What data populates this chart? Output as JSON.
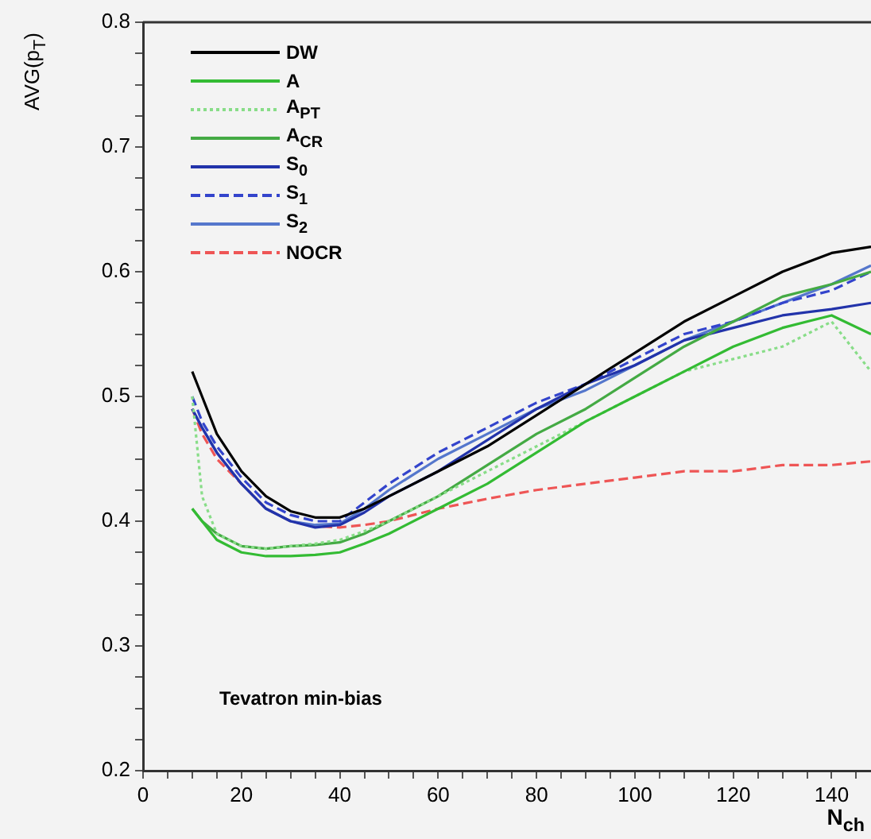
{
  "chart_data": {
    "type": "line",
    "ylabel": "AVG(p$_{T}$)",
    "xlabel": "N$_{ch}$",
    "legend": "top left",
    "marker": "none",
    "grid": false,
    "xlim": [
      0,
      148
    ],
    "ylim": [
      0.2,
      0.8
    ],
    "xticks": [
      0,
      {
        "value": 5,
        "label": null
      },
      {
        "value": 10,
        "label": null
      },
      {
        "value": 15,
        "label": null
      },
      20,
      {
        "value": 25,
        "label": null
      },
      {
        "value": 30,
        "label": null
      },
      {
        "value": 35,
        "label": null
      },
      40,
      {
        "value": 45,
        "label": null
      },
      {
        "value": 50,
        "label": null
      },
      {
        "value": 55,
        "label": null
      },
      60,
      {
        "value": 65,
        "label": null
      },
      {
        "value": 70,
        "label": null
      },
      {
        "value": 75,
        "label": null
      },
      80,
      {
        "value": 85,
        "label": null
      },
      {
        "value": 90,
        "label": null
      },
      {
        "value": 95,
        "label": null
      },
      100,
      {
        "value": 105,
        "label": null
      },
      {
        "value": 110,
        "label": null
      },
      {
        "value": 115,
        "label": null
      },
      120,
      {
        "value": 125,
        "label": null
      },
      {
        "value": 130,
        "label": null
      },
      {
        "value": 135,
        "label": null
      },
      140,
      {
        "value": 145,
        "label": null
      }
    ],
    "yticks": [
      0.2,
      {
        "value": 0.225,
        "label": null
      },
      {
        "value": 0.25,
        "label": null
      },
      {
        "value": 0.275,
        "label": null
      },
      0.3,
      {
        "value": 0.325,
        "label": null
      },
      {
        "value": 0.35,
        "label": null
      },
      {
        "value": 0.375,
        "label": null
      },
      0.4,
      {
        "value": 0.425,
        "label": null
      },
      {
        "value": 0.45,
        "label": null
      },
      {
        "value": 0.475,
        "label": null
      },
      0.5,
      {
        "value": 0.525,
        "label": null
      },
      {
        "value": 0.55,
        "label": null
      },
      {
        "value": 0.575,
        "label": null
      },
      0.6,
      {
        "value": 0.625,
        "label": null
      },
      {
        "value": 0.65,
        "label": null
      },
      {
        "value": 0.675,
        "label": null
      },
      0.7,
      {
        "value": 0.725,
        "label": null
      },
      {
        "value": 0.75,
        "label": null
      },
      {
        "value": 0.775,
        "label": null
      },
      0.8
    ],
    "x": [
      10,
      12,
      15,
      20,
      25,
      30,
      35,
      40,
      45,
      50,
      60,
      70,
      80,
      90,
      100,
      110,
      120,
      130,
      140,
      148
    ],
    "annotations": [
      "Tevatron min-bias"
    ],
    "series": [
      {
        "name": "DW",
        "color": "#000000",
        "line_style": "solid",
        "values": [
          0.52,
          0.5,
          0.47,
          0.44,
          0.42,
          0.408,
          0.403,
          0.403,
          0.41,
          0.42,
          0.44,
          0.46,
          0.485,
          0.51,
          0.535,
          0.56,
          0.58,
          0.6,
          0.615,
          0.62
        ]
      },
      {
        "name": "A",
        "color": "#33bb33",
        "line_style": "solid",
        "values": [
          0.41,
          0.4,
          0.385,
          0.375,
          0.372,
          0.372,
          0.373,
          0.375,
          0.382,
          0.39,
          0.41,
          0.43,
          0.455,
          0.48,
          0.5,
          0.52,
          0.54,
          0.555,
          0.565,
          0.55
        ]
      },
      {
        "name": "A$_{PT}$",
        "color": "#88dd88",
        "line_style": "dotted",
        "values": [
          0.5,
          0.42,
          0.39,
          0.38,
          0.378,
          0.38,
          0.382,
          0.385,
          0.392,
          0.4,
          0.42,
          0.44,
          0.46,
          0.48,
          0.5,
          0.52,
          0.53,
          0.54,
          0.56,
          0.52
        ]
      },
      {
        "name": "A$_{CR}$",
        "color": "#44aa44",
        "line_style": "solid",
        "values": [
          0.41,
          0.4,
          0.39,
          0.38,
          0.378,
          0.38,
          0.381,
          0.383,
          0.39,
          0.4,
          0.42,
          0.445,
          0.47,
          0.49,
          0.515,
          0.54,
          0.56,
          0.58,
          0.59,
          0.6
        ]
      },
      {
        "name": "S$_{0}$",
        "color": "#2233aa",
        "line_style": "solid",
        "values": [
          0.49,
          0.475,
          0.455,
          0.43,
          0.41,
          0.4,
          0.395,
          0.397,
          0.407,
          0.42,
          0.44,
          0.465,
          0.49,
          0.51,
          0.525,
          0.545,
          0.555,
          0.565,
          0.57,
          0.575
        ]
      },
      {
        "name": "S$_{1}$",
        "color": "#3344cc",
        "line_style": "dashed",
        "values": [
          0.5,
          0.48,
          0.46,
          0.435,
          0.415,
          0.405,
          0.4,
          0.4,
          0.415,
          0.43,
          0.455,
          0.475,
          0.495,
          0.51,
          0.53,
          0.55,
          0.56,
          0.575,
          0.585,
          0.6
        ]
      },
      {
        "name": "S$_{2}$",
        "color": "#5577cc",
        "line_style": "solid",
        "values": [
          0.49,
          0.475,
          0.455,
          0.43,
          0.41,
          0.4,
          0.397,
          0.398,
          0.41,
          0.425,
          0.45,
          0.47,
          0.49,
          0.505,
          0.525,
          0.545,
          0.56,
          0.575,
          0.59,
          0.605
        ]
      },
      {
        "name": "NOCR",
        "color": "#ee5555",
        "line_style": "dashed",
        "values": [
          0.49,
          0.47,
          0.45,
          0.43,
          0.41,
          0.4,
          0.396,
          0.395,
          0.397,
          0.4,
          0.41,
          0.418,
          0.425,
          0.43,
          0.435,
          0.44,
          0.44,
          0.445,
          0.445,
          0.448
        ]
      }
    ]
  }
}
